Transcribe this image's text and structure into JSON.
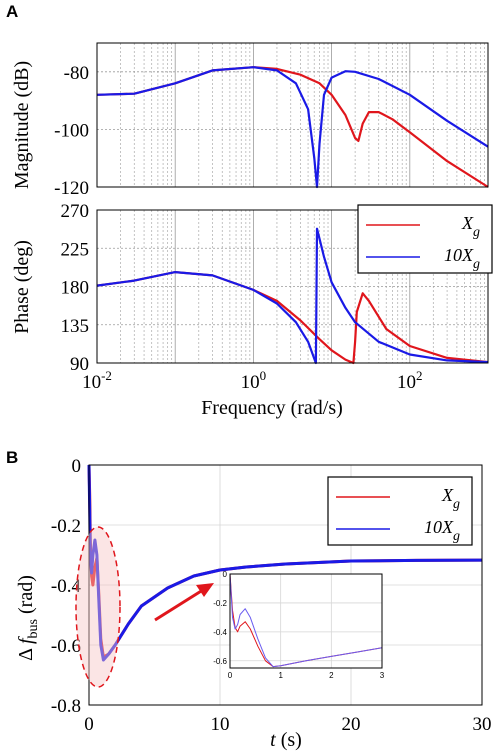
{
  "panels": [
    {
      "letter": "A"
    },
    {
      "letter": "B"
    }
  ],
  "chart_data": [
    {
      "type": "line",
      "title": "",
      "xscale": "log",
      "xlim": [
        0.01,
        1000
      ],
      "ylim": [
        -120,
        -70
      ],
      "xlabel": "",
      "ylabel": "Magnitude (dB)",
      "yticks": [
        "-80",
        "-100",
        "-120"
      ],
      "yticks_values": [
        -80,
        -100,
        -120
      ],
      "grid": true,
      "series": [
        {
          "name": "X",
          "color": "#e0161c",
          "x": [
            0.01,
            0.03,
            0.1,
            0.3,
            1,
            2,
            4,
            7,
            10,
            15,
            20,
            22,
            25,
            30,
            40,
            60,
            100,
            300,
            1000
          ],
          "y": [
            -88,
            -87.6,
            -84,
            -79.5,
            -78.4,
            -79,
            -81,
            -84,
            -88,
            -95,
            -103,
            -104,
            -98,
            -94,
            -94,
            -96.5,
            -101,
            -111,
            -120
          ]
        },
        {
          "name": "10X",
          "color": "#1a1ae6",
          "x": [
            0.01,
            0.03,
            0.1,
            0.3,
            1,
            2,
            3.5,
            5,
            6,
            6.5,
            7,
            8,
            10,
            15,
            20,
            40,
            100,
            300,
            1000
          ],
          "y": [
            -88,
            -87.6,
            -84,
            -79.5,
            -78.4,
            -79.5,
            -84,
            -93,
            -110,
            -120,
            -105,
            -88,
            -82,
            -79.8,
            -80,
            -82.5,
            -88,
            -97,
            -106
          ]
        }
      ]
    },
    {
      "type": "line",
      "title": "",
      "xscale": "log",
      "xlim": [
        0.01,
        1000
      ],
      "ylim": [
        90,
        270
      ],
      "xlabel": "Frequency (rad/s)",
      "ylabel": "Phase (deg)",
      "xticks": [
        {
          "base": "10",
          "exp": "-2"
        },
        {
          "base": "10",
          "exp": "0"
        },
        {
          "base": "10",
          "exp": "2"
        }
      ],
      "xticks_values": [
        0.01,
        1,
        100
      ],
      "yticks": [
        "270",
        "225",
        "180",
        "135",
        "90"
      ],
      "yticks_values": [
        270,
        225,
        180,
        135,
        90
      ],
      "grid": true,
      "legend": {
        "placement": "top-right",
        "entries": [
          {
            "base": "X",
            "sub": "g",
            "color": "#e0161c"
          },
          {
            "base": "10X",
            "sub": "g",
            "color": "#1a1ae6"
          }
        ]
      },
      "series": [
        {
          "name": "X",
          "color": "#e0161c",
          "x": [
            0.01,
            0.03,
            0.1,
            0.3,
            1,
            2,
            4,
            7,
            10,
            15,
            19,
            20,
            21,
            25,
            30,
            50,
            100,
            300,
            1000
          ],
          "y": [
            181,
            187,
            197,
            193,
            176,
            163,
            140,
            118,
            105,
            94,
            90,
            115,
            150,
            172,
            163,
            130,
            110,
            96,
            91
          ]
        },
        {
          "name": "10X",
          "color": "#1a1ae6",
          "x": [
            0.01,
            0.03,
            0.1,
            0.3,
            1,
            2,
            3.5,
            5,
            6,
            6.3,
            6.5,
            8,
            10,
            15,
            20,
            40,
            100,
            300,
            1000
          ],
          "y": [
            181,
            187,
            197,
            193,
            176,
            160,
            138,
            115,
            95,
            90,
            248,
            215,
            185,
            155,
            138,
            115,
            100,
            93,
            91
          ]
        }
      ]
    },
    {
      "type": "line",
      "title": "",
      "xlim": [
        0,
        30
      ],
      "ylim": [
        -0.8,
        0
      ],
      "xlabel": {
        "var": "t",
        "unit": " (s)"
      },
      "ylabel": {
        "delta": "Δ",
        "var": "f",
        "sub": "bus",
        "unit": " (rad)"
      },
      "xticks": [
        "0",
        "10",
        "20",
        "30"
      ],
      "xticks_values": [
        0,
        10,
        20,
        30
      ],
      "yticks": [
        "0",
        "-0.2",
        "-0.4",
        "-0.6",
        "-0.8"
      ],
      "yticks_values": [
        0,
        -0.2,
        -0.4,
        -0.6,
        -0.8
      ],
      "grid": true,
      "legend": {
        "placement": "top-right",
        "entries": [
          {
            "base": "X",
            "sub": "g",
            "color": "#e0161c"
          },
          {
            "base": "10X",
            "sub": "g",
            "color": "#1a1ae6"
          }
        ]
      },
      "series": [
        {
          "name": "X",
          "color": "#e0161c",
          "x": [
            0,
            0.05,
            0.1,
            0.2,
            0.3,
            0.45,
            0.6,
            0.75,
            0.9,
            1.1,
            1.5,
            2,
            3,
            4,
            6,
            8,
            10,
            12,
            15,
            20,
            25,
            30
          ],
          "y": [
            0,
            -0.1,
            -0.25,
            -0.37,
            -0.4,
            -0.34,
            -0.31,
            -0.43,
            -0.58,
            -0.64,
            -0.63,
            -0.6,
            -0.53,
            -0.47,
            -0.41,
            -0.37,
            -0.35,
            -0.34,
            -0.33,
            -0.32,
            -0.318,
            -0.317
          ]
        },
        {
          "name": "10X",
          "color": "#1a1ae6",
          "x": [
            0,
            0.05,
            0.1,
            0.2,
            0.3,
            0.45,
            0.6,
            0.75,
            0.9,
            1.1,
            1.5,
            2,
            3,
            4,
            6,
            8,
            10,
            12,
            15,
            20,
            25,
            30
          ],
          "y": [
            0,
            -0.15,
            -0.3,
            -0.36,
            -0.3,
            -0.25,
            -0.3,
            -0.45,
            -0.6,
            -0.65,
            -0.63,
            -0.6,
            -0.53,
            -0.47,
            -0.41,
            -0.37,
            -0.35,
            -0.34,
            -0.33,
            -0.32,
            -0.318,
            -0.317
          ]
        }
      ]
    },
    {
      "type": "line",
      "title": "",
      "xlim": [
        0,
        3
      ],
      "ylim": [
        -0.65,
        0
      ],
      "xticks": [
        "0",
        "1",
        "2",
        "3"
      ],
      "xticks_values": [
        0,
        1,
        2,
        3
      ],
      "yticks": [
        "0",
        "-0.2",
        "-0.4",
        "-0.6"
      ],
      "yticks_values": [
        0,
        -0.2,
        -0.4,
        -0.6
      ],
      "grid": true,
      "series": [
        {
          "name": "X",
          "color": "#e0161c",
          "x": [
            0,
            0.05,
            0.1,
            0.15,
            0.2,
            0.3,
            0.4,
            0.55,
            0.7,
            0.85,
            1.0,
            1.2,
            1.5,
            2,
            2.5,
            3
          ],
          "y": [
            0,
            -0.25,
            -0.37,
            -0.4,
            -0.36,
            -0.33,
            -0.38,
            -0.5,
            -0.6,
            -0.64,
            -0.635,
            -0.62,
            -0.6,
            -0.57,
            -0.54,
            -0.51
          ]
        },
        {
          "name": "10X",
          "color": "#6a5cf0",
          "x": [
            0,
            0.05,
            0.1,
            0.15,
            0.2,
            0.3,
            0.4,
            0.55,
            0.7,
            0.85,
            1.0,
            1.2,
            1.5,
            2,
            2.5,
            3
          ],
          "y": [
            0,
            -0.3,
            -0.38,
            -0.35,
            -0.28,
            -0.24,
            -0.3,
            -0.45,
            -0.58,
            -0.64,
            -0.635,
            -0.62,
            -0.6,
            -0.57,
            -0.54,
            -0.51
          ]
        }
      ]
    }
  ]
}
